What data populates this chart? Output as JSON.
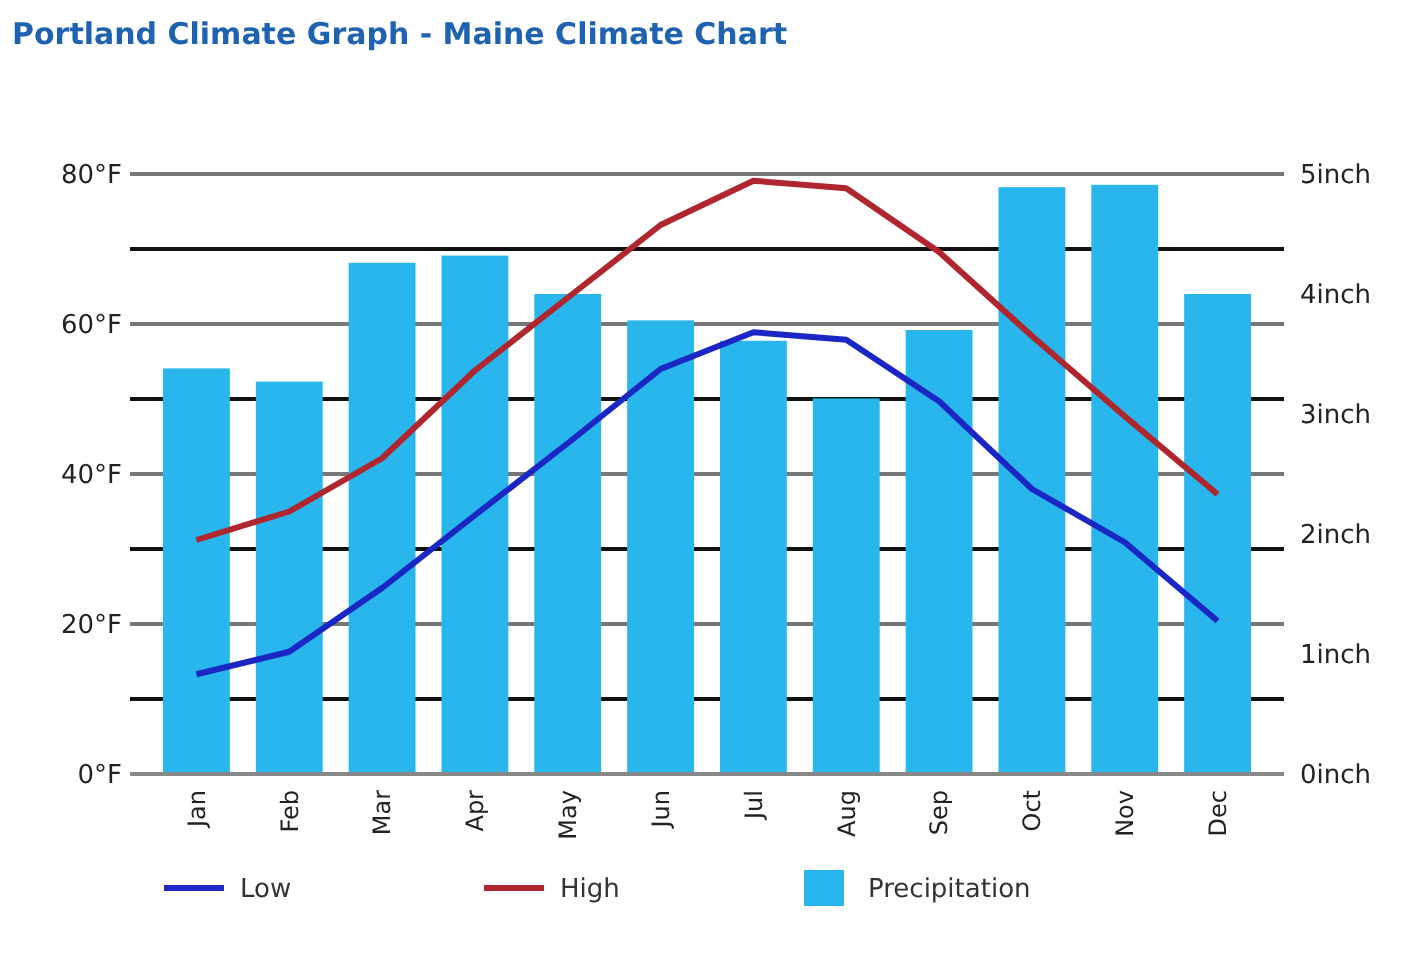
{
  "chart_data": {
    "type": "bar",
    "title": "Portland Climate Graph - Maine Climate Chart",
    "categories": [
      "Jan",
      "Feb",
      "Mar",
      "Apr",
      "May",
      "Jun",
      "Jul",
      "Aug",
      "Sep",
      "Oct",
      "Nov",
      "Dec"
    ],
    "series": [
      {
        "name": "Low",
        "type": "line",
        "color": "#1a27c4",
        "values": [
          13.3,
          16.3,
          24.8,
          34.5,
          44.1,
          54.0,
          58.9,
          57.9,
          49.7,
          38.0,
          30.9,
          20.4
        ]
      },
      {
        "name": "High",
        "type": "line",
        "color": "#b0262e",
        "values": [
          31.2,
          35.0,
          42.1,
          53.8,
          63.5,
          73.2,
          79.1,
          78.1,
          69.6,
          58.4,
          47.7,
          37.3
        ]
      },
      {
        "name": "Precipitation",
        "axis": "y2",
        "color": "#29b6ec",
        "values": [
          3.38,
          3.27,
          4.26,
          4.32,
          4.0,
          3.78,
          3.61,
          3.13,
          3.7,
          4.89,
          4.91,
          4.0
        ]
      }
    ],
    "ylim": [
      0,
      80
    ],
    "yticks": [
      {
        "value": 0,
        "label": "0°F"
      },
      {
        "value": 10,
        "label": null
      },
      {
        "value": 20,
        "label": "20°F"
      },
      {
        "value": 30,
        "label": null
      },
      {
        "value": 40,
        "label": "40°F"
      },
      {
        "value": 50,
        "label": null
      },
      {
        "value": 60,
        "label": "60°F"
      },
      {
        "value": 70,
        "label": null
      },
      {
        "value": 80,
        "label": "80°F"
      }
    ],
    "y2lim": [
      0,
      5
    ],
    "y2ticks": [
      {
        "value": 0,
        "label": "0inch"
      },
      {
        "value": 1,
        "label": "1inch"
      },
      {
        "value": 2,
        "label": "2inch"
      },
      {
        "value": 3,
        "label": "3inch"
      },
      {
        "value": 4,
        "label": "4inch"
      },
      {
        "value": 5,
        "label": "5inch"
      }
    ],
    "grid": "y",
    "legend": "bottom",
    "marker": "none",
    "line_style": "solid"
  }
}
